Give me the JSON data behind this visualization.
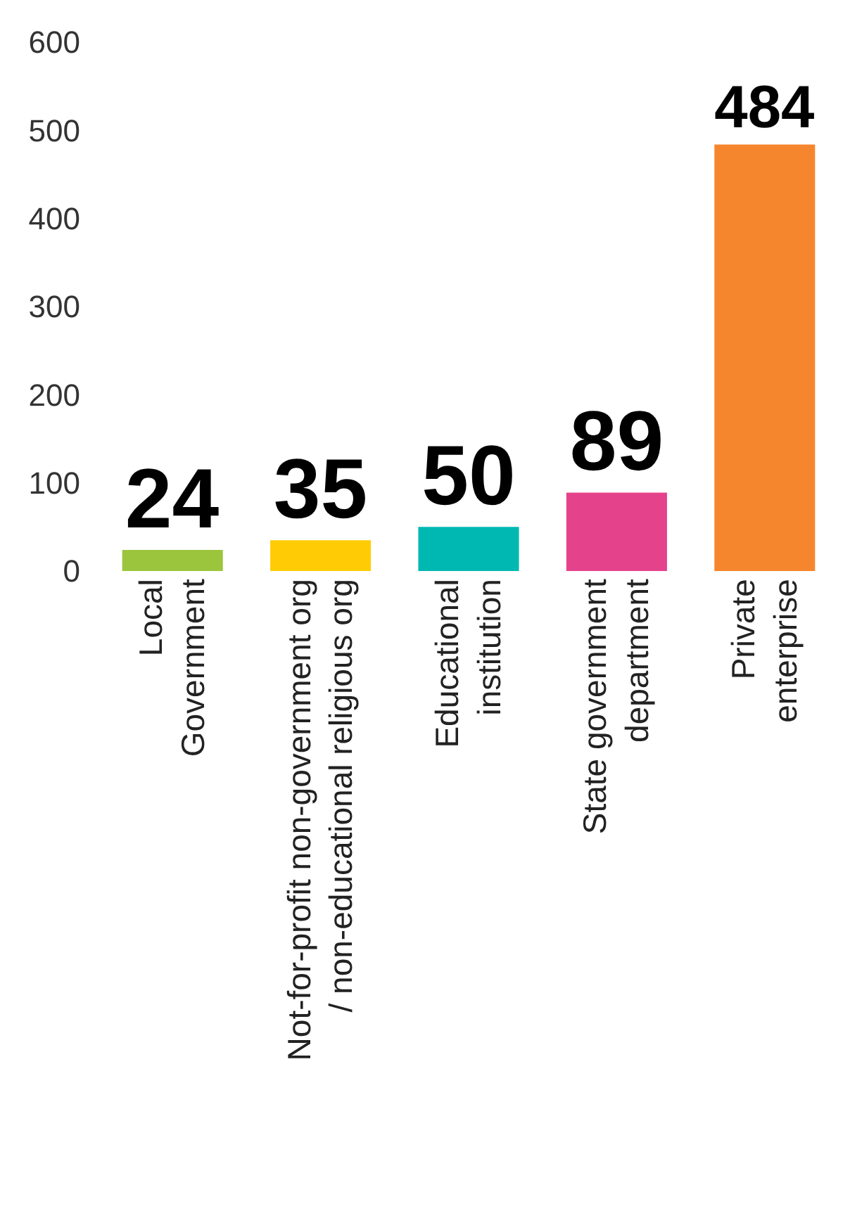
{
  "chart_data": {
    "type": "bar",
    "categories": [
      "Local\nGovernment",
      "Not-for-profit non-government org\n/ non-educational religious org",
      "Educational\ninstitution",
      "State government\ndepartment",
      "Private\nenterprise"
    ],
    "values": [
      24,
      35,
      50,
      89,
      484
    ],
    "colors": [
      "#9bc53d",
      "#ffcb05",
      "#00b8b2",
      "#e5428c",
      "#f6862d"
    ],
    "ylim": [
      0,
      600
    ],
    "yticks": [
      0,
      100,
      200,
      300,
      400,
      500,
      600
    ],
    "legend": false,
    "data_labels": true
  }
}
